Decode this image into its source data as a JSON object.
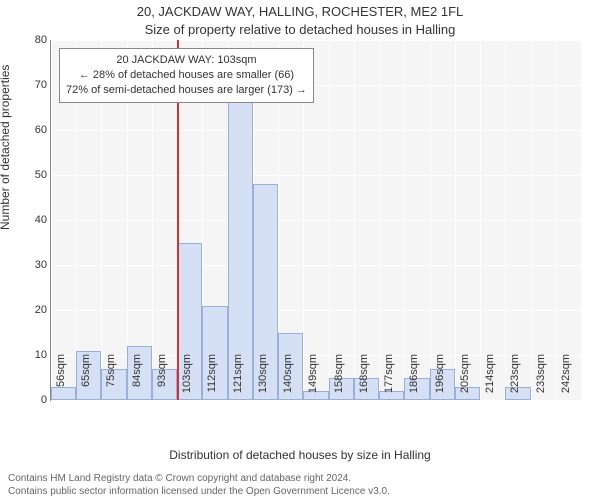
{
  "title_main": "20, JACKDAW WAY, HALLING, ROCHESTER, ME2 1FL",
  "title_sub": "Size of property relative to detached houses in Halling",
  "y_axis_label": "Number of detached properties",
  "x_axis_label": "Distribution of detached houses by size in Halling",
  "footer_line1": "Contains HM Land Registry data © Crown copyright and database right 2024.",
  "footer_line2": "Contains public sector information licensed under the Open Government Licence v3.0.",
  "chart": {
    "type": "histogram",
    "ylim": [
      0,
      80
    ],
    "ytick_step": 10,
    "plot_bg": "#f5f5f5",
    "grid_color": "#ffffff",
    "bar_fill": "#d6e0f5",
    "bar_border": "#9bb0d9",
    "ref_line_color": "#cc3333",
    "ref_line_at_category_index": 5,
    "x_categories": [
      "56sqm",
      "65sqm",
      "75sqm",
      "84sqm",
      "93sqm",
      "103sqm",
      "112sqm",
      "121sqm",
      "130sqm",
      "140sqm",
      "149sqm",
      "158sqm",
      "168sqm",
      "177sqm",
      "186sqm",
      "196sqm",
      "205sqm",
      "214sqm",
      "223sqm",
      "233sqm",
      "242sqm"
    ],
    "values": [
      3,
      11,
      7,
      12,
      7,
      35,
      21,
      73,
      48,
      15,
      2,
      5,
      5,
      2,
      5,
      7,
      3,
      0,
      3,
      0,
      0
    ]
  },
  "annotation": {
    "line1": "20 JACKDAW WAY: 103sqm",
    "line2": "← 28% of detached houses are smaller (66)",
    "line3": "72% of semi-detached houses are larger (173) →",
    "bg": "#ffffff",
    "border": "#888888"
  }
}
